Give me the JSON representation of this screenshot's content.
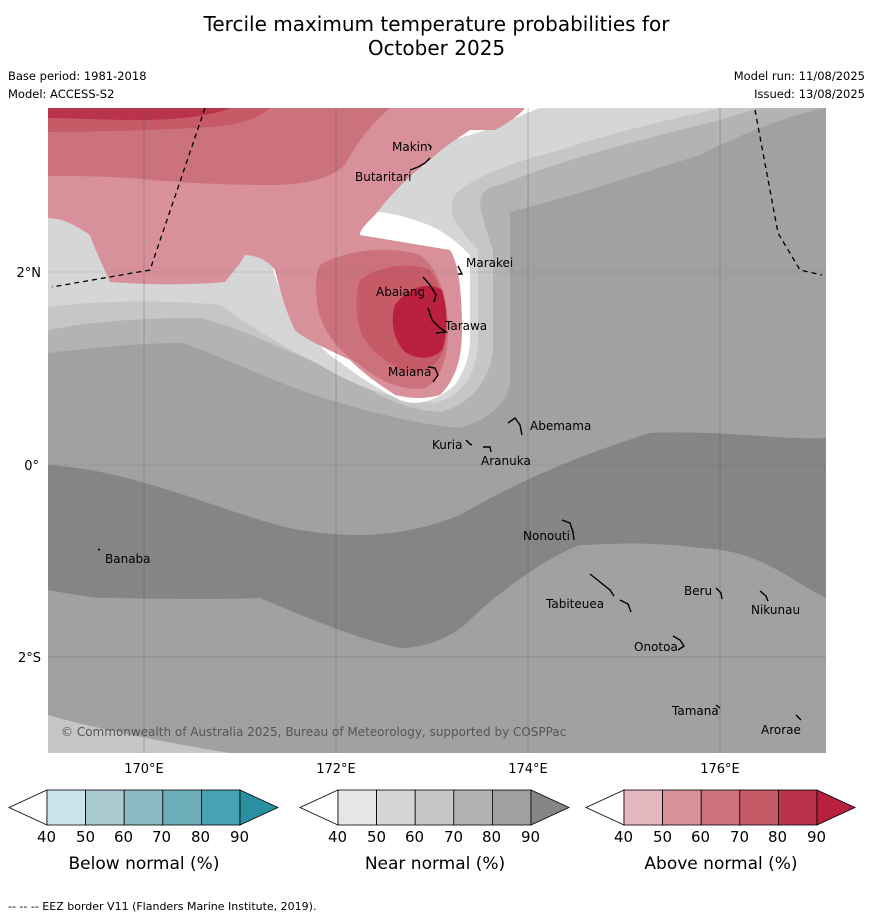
{
  "header": {
    "title_line1": "Tercile maximum temperature probabilities for",
    "title_line2": "October 2025",
    "base_period": "Base period: 1981-2018",
    "model": "Model: ACCESS-S2",
    "model_run": "Model run: 11/08/2025",
    "issued": "Issued: 13/08/2025"
  },
  "map": {
    "lat_labels": [
      "2°N",
      "0°",
      "2°S"
    ],
    "lon_labels": [
      "170°E",
      "172°E",
      "174°E",
      "176°E"
    ],
    "copyright": "© Commonwealth of Australia 2025, Bureau of Meteorology, supported by COSPPac",
    "places": [
      "Makin",
      "Butaritari",
      "Marakei",
      "Abaiang",
      "Tarawa",
      "Maiana",
      "Abemama",
      "Kuria",
      "Aranuka",
      "Nonouti",
      "Banaba",
      "Beru",
      "Nikunau",
      "Tabiteuea",
      "Onotoa",
      "Tamana",
      "Arorae"
    ]
  },
  "colorbars": {
    "below": {
      "label": "Below normal (%)",
      "ticks": [
        "40",
        "50",
        "60",
        "70",
        "80",
        "90"
      ],
      "colors": [
        "#ffffff",
        "#cde3ea",
        "#a9c8d0",
        "#8cb9c5",
        "#6eaebb",
        "#48a2b1",
        "#2a8fa0"
      ]
    },
    "near": {
      "label": "Near normal (%)",
      "ticks": [
        "40",
        "50",
        "60",
        "70",
        "80",
        "90"
      ],
      "colors": [
        "#ffffff",
        "#e6e6e6",
        "#d6d6d6",
        "#c6c6c6",
        "#b3b3b3",
        "#a1a1a1",
        "#858585"
      ]
    },
    "above": {
      "label": "Above normal (%)",
      "ticks": [
        "40",
        "50",
        "60",
        "70",
        "80",
        "90"
      ],
      "colors": [
        "#ffffff",
        "#e4b8bf",
        "#d8919a",
        "#cc727c",
        "#c65a66",
        "#b9334a",
        "#b8203e"
      ]
    }
  },
  "footer": {
    "eez_note": "--  --  -- EEZ border V11 (Flanders Marine Institute, 2019)."
  }
}
